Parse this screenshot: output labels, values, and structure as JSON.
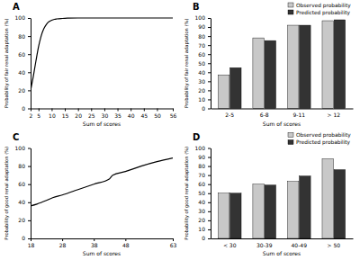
{
  "chart_data": [
    {
      "type": "line",
      "title": "A",
      "x_label": "Sum of scores",
      "y_label": "Probability of fair renal adaptation (%)",
      "x": [
        2,
        3,
        4,
        5,
        6,
        7,
        8,
        9,
        10,
        11,
        12,
        14,
        16,
        20,
        30,
        40,
        56
      ],
      "values": [
        20,
        35,
        52,
        68,
        80,
        88,
        93,
        96,
        97.5,
        98.5,
        99,
        99.5,
        99.8,
        100,
        100,
        100,
        100
      ],
      "color": "#000000",
      "marker": "none",
      "xlim": [
        2,
        56
      ],
      "xticks": [
        2,
        5,
        10,
        15,
        20,
        25,
        30,
        35,
        40,
        45,
        50,
        56
      ],
      "ylim": [
        0,
        100
      ],
      "yticks": [
        0,
        20,
        40,
        60,
        80,
        100
      ],
      "grid": false
    },
    {
      "type": "bar",
      "title": "B",
      "x_label": "Sum of scores",
      "y_label": "Probability of fair renal adaptation (%)",
      "categories": [
        "2-5",
        "6-8",
        "9-11",
        "> 12"
      ],
      "series": [
        {
          "name": "Observed probability",
          "color": "#c8c8c8",
          "values": [
            37,
            78,
            92,
            97
          ]
        },
        {
          "name": "Predicted probability",
          "color": "#333333",
          "values": [
            45,
            75,
            92,
            98
          ]
        }
      ],
      "ylim": [
        0,
        100
      ],
      "yticks": [
        0,
        10,
        20,
        30,
        40,
        50,
        60,
        70,
        80,
        90,
        100
      ],
      "legend": "top-right",
      "grid": false
    },
    {
      "type": "line",
      "title": "C",
      "x_label": "Sum of scores",
      "y_label": "Probability of good renal adaptation (%)",
      "x": [
        18,
        20,
        23,
        25,
        28,
        33,
        38,
        43,
        44,
        48,
        53,
        58,
        63
      ],
      "values": [
        36,
        38,
        42,
        45,
        48,
        54,
        60,
        66,
        70,
        74,
        80,
        85,
        89
      ],
      "color": "#000000",
      "marker": "none",
      "xlim": [
        18,
        63
      ],
      "xticks": [
        18,
        28,
        38,
        48,
        63
      ],
      "ylim": [
        0,
        100
      ],
      "yticks": [
        0,
        20,
        40,
        60,
        80,
        100
      ],
      "grid": false
    },
    {
      "type": "bar",
      "title": "D",
      "x_label": "Sum of scores",
      "y_label": "Probability of good renal adaptation (%)",
      "categories": [
        "< 30",
        "30-39",
        "40-49",
        "> 50"
      ],
      "series": [
        {
          "name": "Observed probability",
          "color": "#c8c8c8",
          "values": [
            50,
            60,
            63,
            88
          ]
        },
        {
          "name": "Predicted probability",
          "color": "#333333",
          "values": [
            50,
            59,
            69,
            76
          ]
        }
      ],
      "ylim": [
        0,
        100
      ],
      "yticks": [
        0,
        10,
        20,
        30,
        40,
        50,
        60,
        70,
        80,
        90,
        100
      ],
      "legend": "top-right",
      "grid": false
    }
  ]
}
